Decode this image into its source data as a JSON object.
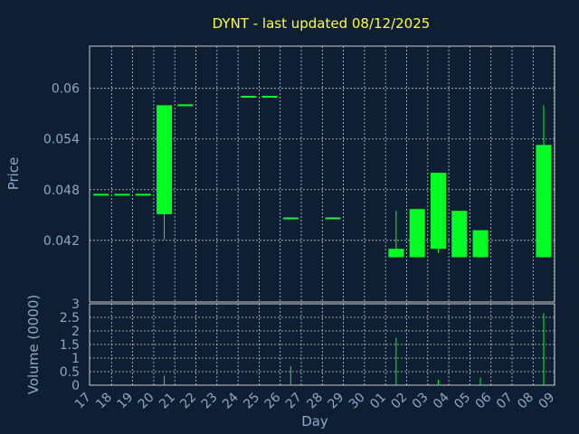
{
  "chart_data": {
    "type": "candlestick",
    "title": "DYNT - last updated 08/12/2025",
    "xlabel": "Day",
    "colors": {
      "background": "#0f1f33",
      "text": "#8fa8c8",
      "title": "#ffff33",
      "candle": "#00ff22",
      "grid": "#c8c8c8"
    },
    "x_tick_labels": [
      "17",
      "18",
      "19",
      "20",
      "21",
      "22",
      "23",
      "24",
      "25",
      "26",
      "27",
      "28",
      "29",
      "30",
      "01",
      "02",
      "03",
      "04",
      "05",
      "06",
      "07",
      "08",
      "09"
    ],
    "price_panel": {
      "ylabel": "Price",
      "ylim": [
        0.0347,
        0.065
      ],
      "yticks": [
        0.042,
        0.048,
        0.054,
        0.06
      ],
      "ytick_labels": [
        "0.042",
        "0.048",
        "0.054",
        "0.06"
      ]
    },
    "volume_panel": {
      "ylabel": "Volume (0000)",
      "ylim": [
        0,
        3
      ],
      "yticks": [
        0,
        0.5,
        1,
        1.5,
        2,
        2.5,
        3
      ],
      "ytick_labels": [
        "0",
        "0.5",
        "1",
        "1.5",
        "2",
        "2.5",
        "3"
      ]
    },
    "candles": [
      {
        "day": "17",
        "open": 0.0474,
        "high": 0.0474,
        "low": 0.0474,
        "close": 0.0474,
        "volume": 0.0
      },
      {
        "day": "18",
        "open": 0.0474,
        "high": 0.0474,
        "low": 0.0474,
        "close": 0.0474,
        "volume": 0.0
      },
      {
        "day": "19",
        "open": 0.0474,
        "high": 0.0474,
        "low": 0.0474,
        "close": 0.0474,
        "volume": 0.0
      },
      {
        "day": "20",
        "open": 0.0451,
        "high": 0.058,
        "low": 0.0421,
        "close": 0.058,
        "volume": 0.35
      },
      {
        "day": "21",
        "open": 0.058,
        "high": 0.058,
        "low": 0.058,
        "close": 0.058,
        "volume": 0.0
      },
      {
        "day": "24",
        "open": 0.059,
        "high": 0.059,
        "low": 0.059,
        "close": 0.059,
        "volume": 0.0
      },
      {
        "day": "25",
        "open": 0.059,
        "high": 0.059,
        "low": 0.059,
        "close": 0.059,
        "volume": 0.0
      },
      {
        "day": "26",
        "open": 0.0446,
        "high": 0.0446,
        "low": 0.0446,
        "close": 0.0446,
        "volume": 0.7
      },
      {
        "day": "28",
        "open": 0.0446,
        "high": 0.0446,
        "low": 0.0446,
        "close": 0.0446,
        "volume": 0.0
      },
      {
        "day": "01",
        "open": 0.04,
        "high": 0.0455,
        "low": 0.04,
        "close": 0.041,
        "volume": 1.75
      },
      {
        "day": "02",
        "open": 0.04,
        "high": 0.0457,
        "low": 0.04,
        "close": 0.0457,
        "volume": 0.0
      },
      {
        "day": "03",
        "open": 0.041,
        "high": 0.05,
        "low": 0.0405,
        "close": 0.05,
        "volume": 0.2
      },
      {
        "day": "04",
        "open": 0.04,
        "high": 0.0455,
        "low": 0.04,
        "close": 0.0455,
        "volume": 0.0
      },
      {
        "day": "05",
        "open": 0.04,
        "high": 0.0432,
        "low": 0.04,
        "close": 0.0432,
        "volume": 0.28
      },
      {
        "day": "08",
        "open": 0.04,
        "high": 0.058,
        "low": 0.04,
        "close": 0.0533,
        "volume": 2.65
      }
    ]
  }
}
